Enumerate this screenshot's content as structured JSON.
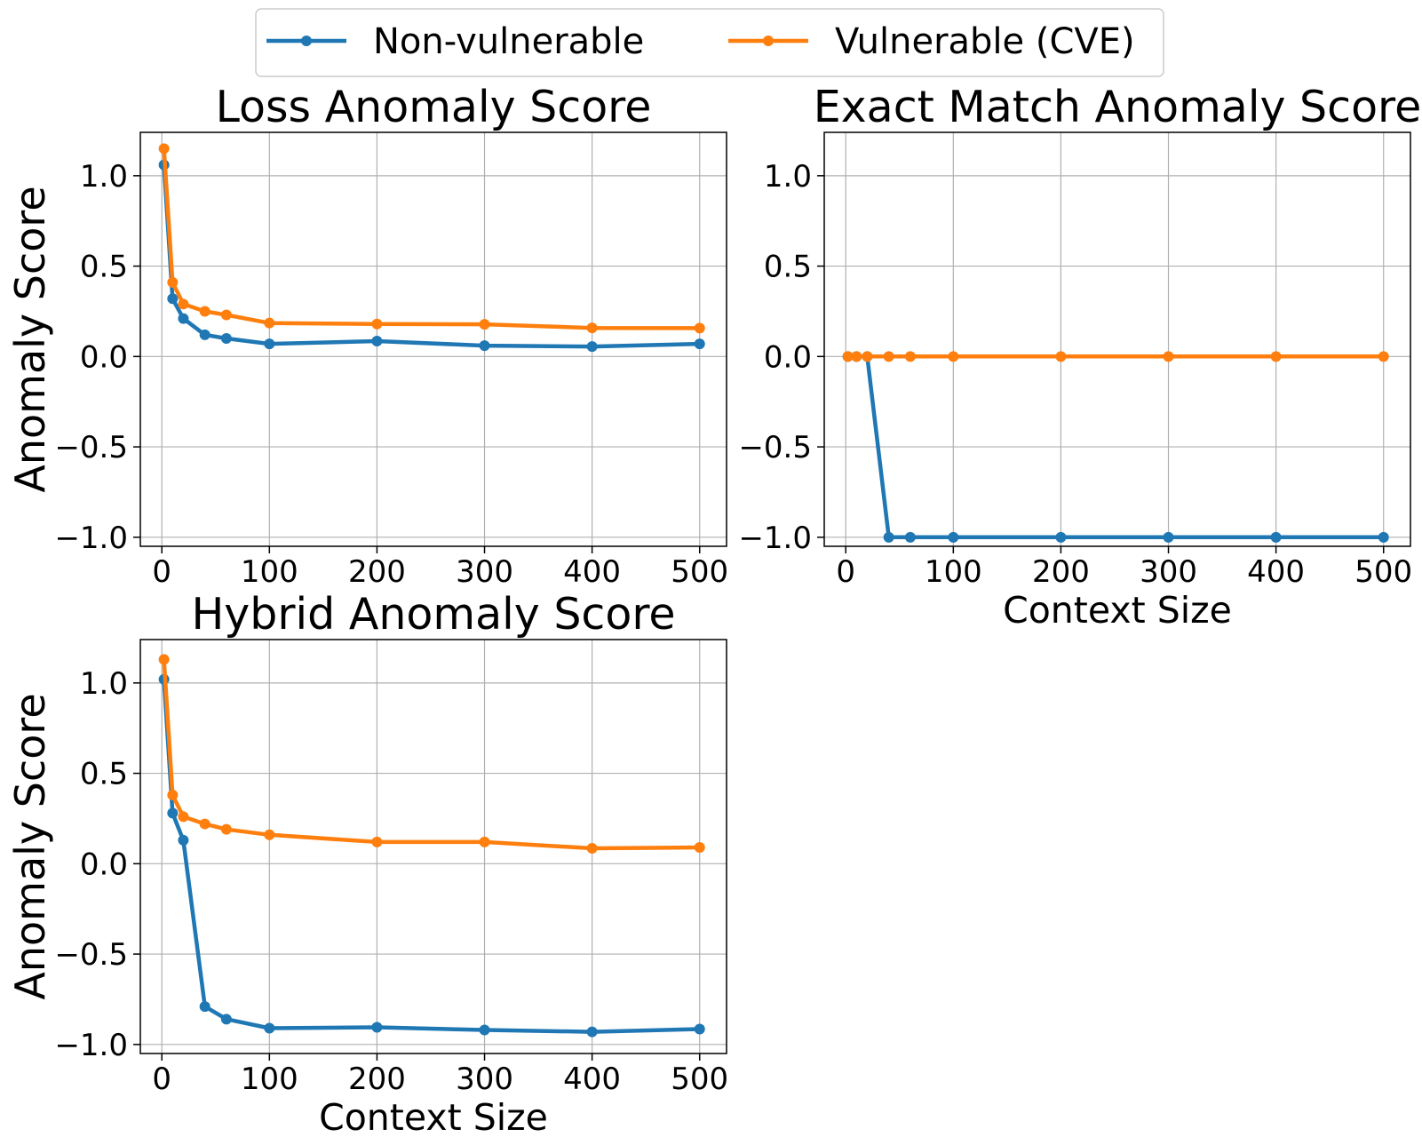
{
  "legend": {
    "placement": "top-center",
    "entries": [
      {
        "label": "Non-vulnerable",
        "color": "#1f77b4"
      },
      {
        "label": "Vulnerable (CVE)",
        "color": "#ff7f0e"
      }
    ]
  },
  "chart_data": [
    {
      "type": "line",
      "title": "Loss Anomaly Score",
      "xlabel": "",
      "ylabel": "Anomaly Score",
      "xlim": [
        -20,
        525
      ],
      "ylim": [
        -1.05,
        1.24
      ],
      "xticks": [
        0,
        100,
        200,
        300,
        400,
        500
      ],
      "yticks": [
        1.0,
        0.5,
        0.0,
        -0.5,
        -1.0
      ],
      "ytick_labels": [
        "1.0",
        "0.5",
        "0.0",
        "−0.5",
        "−1.0"
      ],
      "grid": true,
      "x": [
        2,
        10,
        20,
        40,
        60,
        100,
        200,
        300,
        400,
        500
      ],
      "series": [
        {
          "name": "Non-vulnerable",
          "color": "#1f77b4",
          "values": [
            1.06,
            0.32,
            0.21,
            0.12,
            0.1,
            0.07,
            0.085,
            0.06,
            0.055,
            0.07
          ]
        },
        {
          "name": "Vulnerable (CVE)",
          "color": "#ff7f0e",
          "values": [
            1.15,
            0.41,
            0.29,
            0.25,
            0.23,
            0.185,
            0.18,
            0.178,
            0.158,
            0.157
          ]
        }
      ]
    },
    {
      "type": "line",
      "title": "Exact Match Anomaly Score",
      "xlabel": "Context Size",
      "ylabel": "",
      "xlim": [
        -20,
        525
      ],
      "ylim": [
        -1.05,
        1.24
      ],
      "xticks": [
        0,
        100,
        200,
        300,
        400,
        500
      ],
      "yticks": [
        1.0,
        0.5,
        0.0,
        -0.5,
        -1.0
      ],
      "ytick_labels": [
        "1.0",
        "0.5",
        "0.0",
        "−0.5",
        "−1.0"
      ],
      "grid": true,
      "x": [
        2,
        10,
        20,
        40,
        60,
        100,
        200,
        300,
        400,
        500
      ],
      "series": [
        {
          "name": "Non-vulnerable",
          "color": "#1f77b4",
          "values": [
            0.0,
            0.0,
            0.0,
            -1.0,
            -1.0,
            -1.0,
            -1.0,
            -1.0,
            -1.0,
            -1.0
          ]
        },
        {
          "name": "Vulnerable (CVE)",
          "color": "#ff7f0e",
          "values": [
            0.0,
            0.0,
            0.0,
            0.0,
            0.0,
            0.0,
            0.0,
            0.0,
            0.0,
            0.0
          ]
        }
      ]
    },
    {
      "type": "line",
      "title": "Hybrid Anomaly Score",
      "xlabel": "Context Size",
      "ylabel": "Anomaly Score",
      "xlim": [
        -20,
        525
      ],
      "ylim": [
        -1.05,
        1.24
      ],
      "xticks": [
        0,
        100,
        200,
        300,
        400,
        500
      ],
      "yticks": [
        1.0,
        0.5,
        0.0,
        -0.5,
        -1.0
      ],
      "ytick_labels": [
        "1.0",
        "0.5",
        "0.0",
        "−0.5",
        "−1.0"
      ],
      "grid": true,
      "x": [
        2,
        10,
        20,
        40,
        60,
        100,
        200,
        300,
        400,
        500
      ],
      "series": [
        {
          "name": "Non-vulnerable",
          "color": "#1f77b4",
          "values": [
            1.02,
            0.28,
            0.13,
            -0.79,
            -0.86,
            -0.91,
            -0.905,
            -0.92,
            -0.93,
            -0.915
          ]
        },
        {
          "name": "Vulnerable (CVE)",
          "color": "#ff7f0e",
          "values": [
            1.13,
            0.38,
            0.26,
            0.22,
            0.19,
            0.16,
            0.12,
            0.12,
            0.085,
            0.09
          ]
        }
      ]
    }
  ]
}
